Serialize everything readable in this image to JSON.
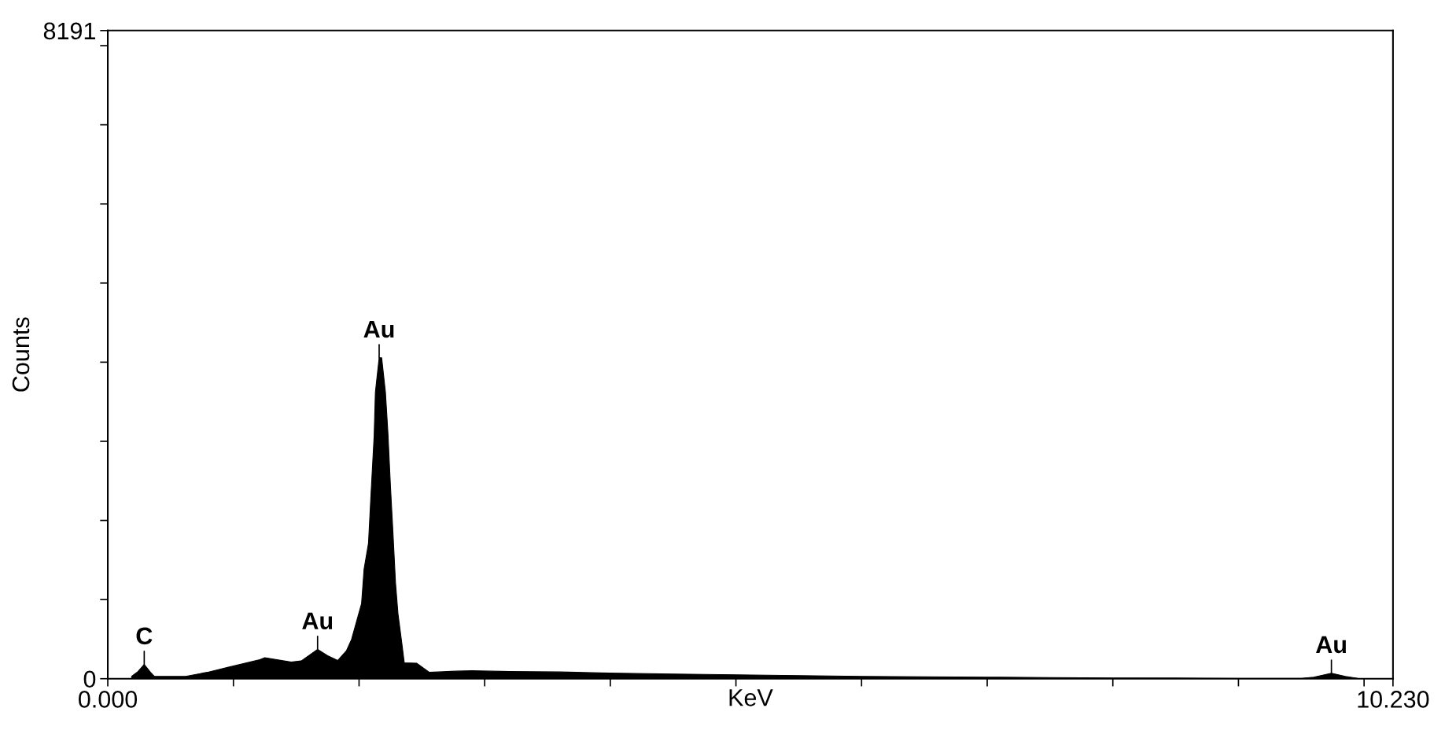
{
  "chart_data": {
    "type": "area",
    "xlabel": "KeV",
    "ylabel": "Counts",
    "x": [
      0.19,
      0.24,
      0.29,
      0.34,
      0.37,
      0.62,
      0.79,
      0.96,
      1.21,
      1.25,
      1.46,
      1.54,
      1.67,
      1.75,
      1.83,
      1.9,
      1.94,
      2.02,
      2.04,
      2.075,
      2.095,
      2.12,
      2.13,
      2.16,
      2.18,
      2.21,
      2.23,
      2.25,
      2.27,
      2.29,
      2.31,
      2.34,
      2.36,
      2.46,
      2.56,
      2.77,
      2.9,
      3.2,
      3.6,
      4.0,
      4.5,
      5.0,
      5.5,
      6.0,
      6.5,
      7.0,
      7.5,
      8.0,
      8.5,
      9.0,
      9.5,
      9.6,
      9.74,
      9.85,
      9.95,
      10.23
    ],
    "series": [
      {
        "color": "#000000",
        "values": [
          30,
          90,
          180,
          80,
          30,
          30,
          80,
          145,
          240,
          265,
          210,
          225,
          370,
          290,
          230,
          355,
          495,
          950,
          1385,
          1710,
          2325,
          3065,
          3620,
          4055,
          4055,
          3620,
          3100,
          2430,
          1840,
          1215,
          820,
          455,
          200,
          195,
          80,
          95,
          100,
          90,
          85,
          70,
          60,
          50,
          40,
          30,
          25,
          20,
          15,
          10,
          8,
          5,
          5,
          20,
          70,
          30,
          5,
          0
        ]
      }
    ],
    "xlim": [
      0,
      10.23
    ],
    "ylim": [
      0,
      8191
    ],
    "xticks": [
      {
        "value": 0,
        "label": "0.000"
      },
      {
        "value": 1,
        "label": null
      },
      {
        "value": 2,
        "label": null
      },
      {
        "value": 3,
        "label": null
      },
      {
        "value": 4,
        "label": null
      },
      {
        "value": 5,
        "label": null
      },
      {
        "value": 6,
        "label": null
      },
      {
        "value": 7,
        "label": null
      },
      {
        "value": 8,
        "label": null
      },
      {
        "value": 9,
        "label": null
      },
      {
        "value": 10,
        "label": null
      },
      {
        "value": 10.23,
        "label": "10.230"
      }
    ],
    "yticks": [
      0,
      {
        "value": 1000,
        "label": null
      },
      {
        "value": 2000,
        "label": null
      },
      {
        "value": 3000,
        "label": null
      },
      {
        "value": 4000,
        "label": null
      },
      {
        "value": 5000,
        "label": null
      },
      {
        "value": 6000,
        "label": null
      },
      {
        "value": 7000,
        "label": null
      },
      {
        "value": 8000,
        "label": null
      },
      8191
    ],
    "annotations": [
      {
        "text": "C",
        "x": 0.29,
        "y": 180
      },
      {
        "text": "Au",
        "x": 1.67,
        "y": 370
      },
      {
        "text": "Au",
        "x": 2.16,
        "y": 4055
      },
      {
        "text": "Au",
        "x": 9.74,
        "y": 70
      }
    ],
    "grid": false,
    "legend": false
  }
}
